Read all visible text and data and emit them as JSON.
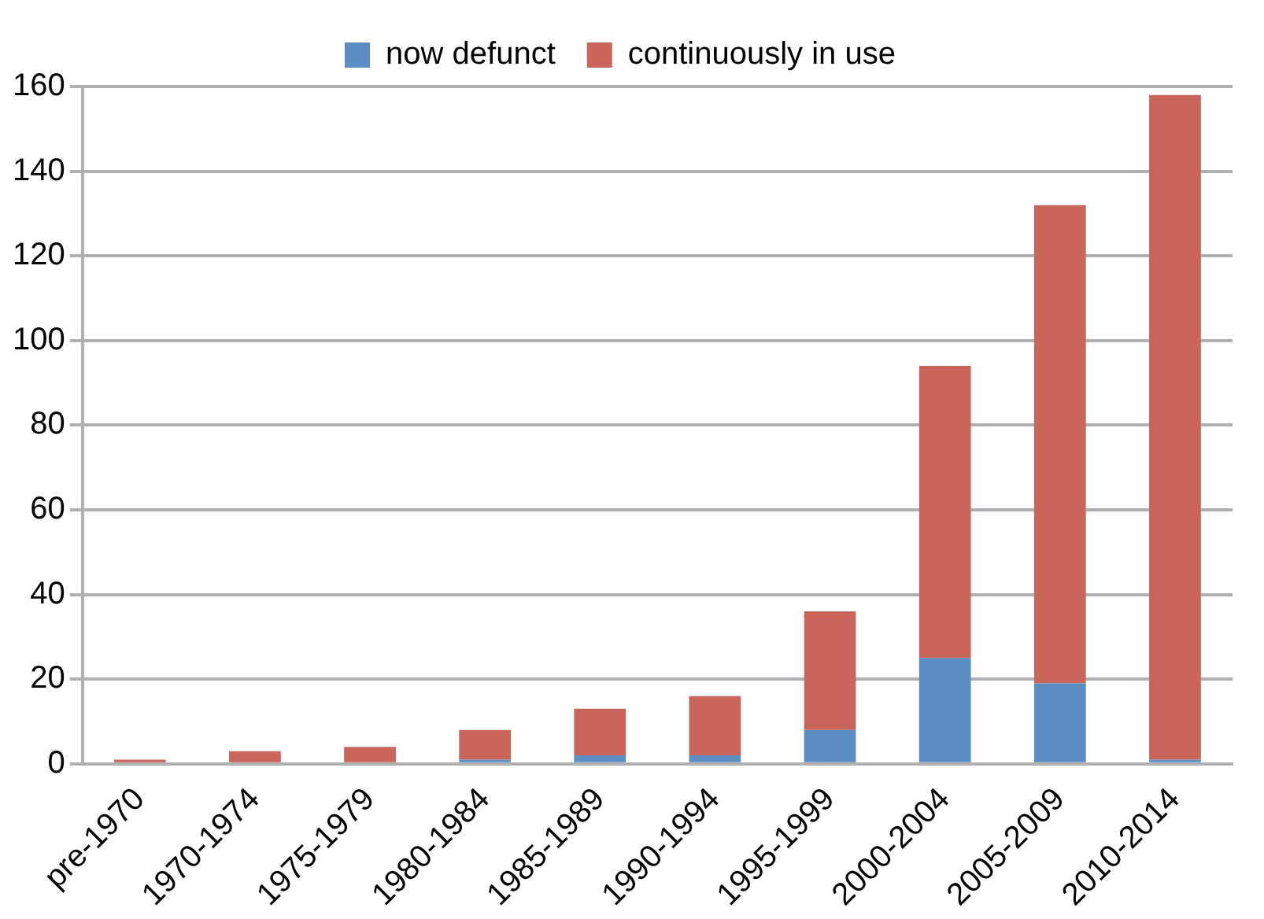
{
  "chart_data": {
    "type": "bar",
    "stacked": true,
    "categories": [
      "pre-1970",
      "1970-1974",
      "1975-1979",
      "1980-1984",
      "1985-1989",
      "1990-1994",
      "1995-1999",
      "2000-2004",
      "2005-2009",
      "2010-2014"
    ],
    "series": [
      {
        "name": "now defunct",
        "color": "#5b8fc4",
        "values": [
          0,
          0,
          0,
          1,
          2,
          2,
          8,
          25,
          19,
          1
        ]
      },
      {
        "name": "continuously in use",
        "color": "#c9655b",
        "values": [
          1,
          3,
          4,
          7,
          11,
          14,
          28,
          69,
          113,
          157
        ]
      }
    ],
    "ylim": [
      0,
      160
    ],
    "yticks": [
      0,
      20,
      40,
      60,
      80,
      100,
      120,
      140,
      160
    ],
    "grid": "y",
    "legend": "top"
  }
}
